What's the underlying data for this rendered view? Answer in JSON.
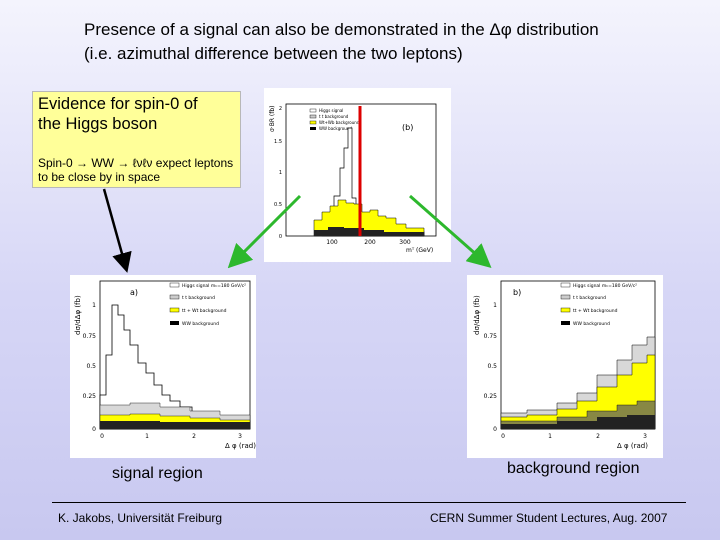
{
  "title": {
    "line1": "Presence of a signal can also be demonstrated in the Δφ  distribution",
    "line2": "(i.e. azimuthal difference between the two leptons)"
  },
  "callout": {
    "heading_line1": "Evidence for spin-0 of",
    "heading_line2": "the Higgs boson",
    "body_line1": "Spin-0 → WW → ℓνℓν expect leptons",
    "body_line2": " to be close by in space"
  },
  "top_plot": {
    "ylabel": "σ·BR (fb)",
    "panel": "(b)",
    "legend": [
      "Higgs signal",
      "t t background",
      "Wt+Wb background",
      "WW background"
    ],
    "yticks": [
      "2",
      "1.5",
      "1",
      "0.5",
      "0"
    ],
    "xticks": [
      "100",
      "200",
      "300"
    ],
    "xlabel": "mᵀ (GeV)"
  },
  "left_plot": {
    "panel": "a)",
    "ylabel": "dσ/dΔφ (fb)",
    "legend": [
      "Higgs signal mₕ=180 GeV/c²",
      "t t background",
      "tt + Wt background",
      "WW background"
    ],
    "yticks": [
      "1",
      "0.75",
      "0.5",
      "0.25",
      "0"
    ],
    "xticks": [
      "0",
      "1",
      "2",
      "3"
    ],
    "xlabel": "Δ φ (rad)"
  },
  "right_plot": {
    "panel": "b)",
    "ylabel": "dσ/dΔφ (fb)",
    "legend": [
      "Higgs signal mₕ=180 GeV/c²",
      "t t background",
      "tt + Wt background",
      "WW background"
    ],
    "yticks": [
      "1",
      "0.75",
      "0.5",
      "0.25",
      "0"
    ],
    "xticks": [
      "0",
      "1",
      "2",
      "3"
    ],
    "xlabel": "Δ φ (rad)"
  },
  "labels": {
    "signal": "signal region",
    "background": "background region"
  },
  "footer": {
    "left": "K. Jakobs,  Universität Freiburg",
    "right": "CERN Summer Student Lectures,  Aug. 2007"
  },
  "colors": {
    "arrow_black": "#000000",
    "arrow_green": "#2db82d",
    "cut_line": "#dd0000",
    "signal_fill": "#ffff00",
    "callout_bg": "#ffff99"
  }
}
